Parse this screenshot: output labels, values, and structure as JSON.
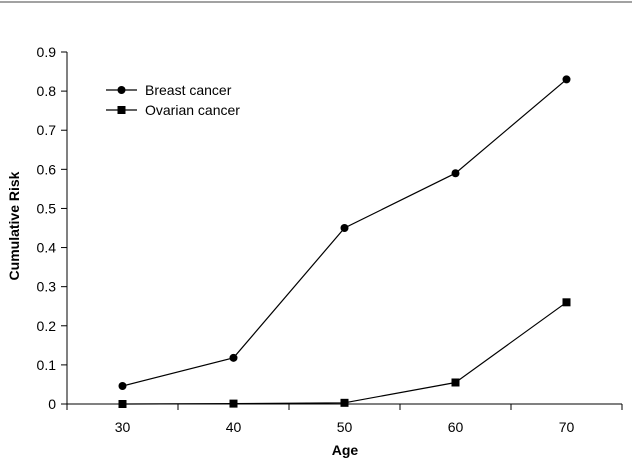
{
  "chart_data": {
    "type": "line",
    "x": [
      30,
      40,
      50,
      60,
      70
    ],
    "series": [
      {
        "name": "Breast cancer",
        "marker": "circle",
        "values": [
          0.046,
          0.118,
          0.45,
          0.59,
          0.83
        ]
      },
      {
        "name": "Ovarian cancer",
        "marker": "square",
        "values": [
          0.0,
          0.001,
          0.003,
          0.055,
          0.26
        ]
      }
    ],
    "xlabel": "Age",
    "ylabel": "Cumulative Risk",
    "xlim": [
      25,
      75
    ],
    "ylim": [
      0,
      0.9
    ],
    "x_ticks": [
      "30",
      "40",
      "50",
      "60",
      "70"
    ],
    "y_ticks": [
      "0",
      "0.1",
      "0.2",
      "0.3",
      "0.4",
      "0.5",
      "0.6",
      "0.7",
      "0.8",
      "0.9"
    ],
    "grid": false,
    "legend_position": "top-left",
    "line_color": "#000000"
  }
}
